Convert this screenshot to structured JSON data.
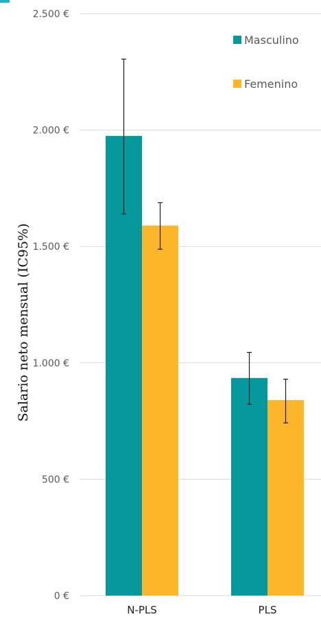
{
  "chart_data": {
    "type": "bar",
    "categories": [
      "N-PLS",
      "PLS"
    ],
    "series": [
      {
        "name": "Masculino",
        "color": "#05999D",
        "values": [
          1975,
          935
        ],
        "ci_low": [
          1640,
          822
        ],
        "ci_high": [
          2305,
          1045
        ]
      },
      {
        "name": "Femenino",
        "color": "#FDB52A",
        "values": [
          1590,
          840
        ],
        "ci_low": [
          1488,
          742
        ],
        "ci_high": [
          1688,
          930
        ]
      }
    ],
    "ylabel": "Salario neto mensual (IC95%)",
    "xlabel": "",
    "ylim": [
      0,
      2500
    ],
    "yticks": [
      0,
      500,
      1000,
      1500,
      2000,
      2500
    ],
    "ytick_labels": [
      "0 €",
      "500 €",
      "1.000 €",
      "1.500 €",
      "2.000 €",
      "2.500 €"
    ],
    "grid": true,
    "legend_position": "top-right"
  }
}
